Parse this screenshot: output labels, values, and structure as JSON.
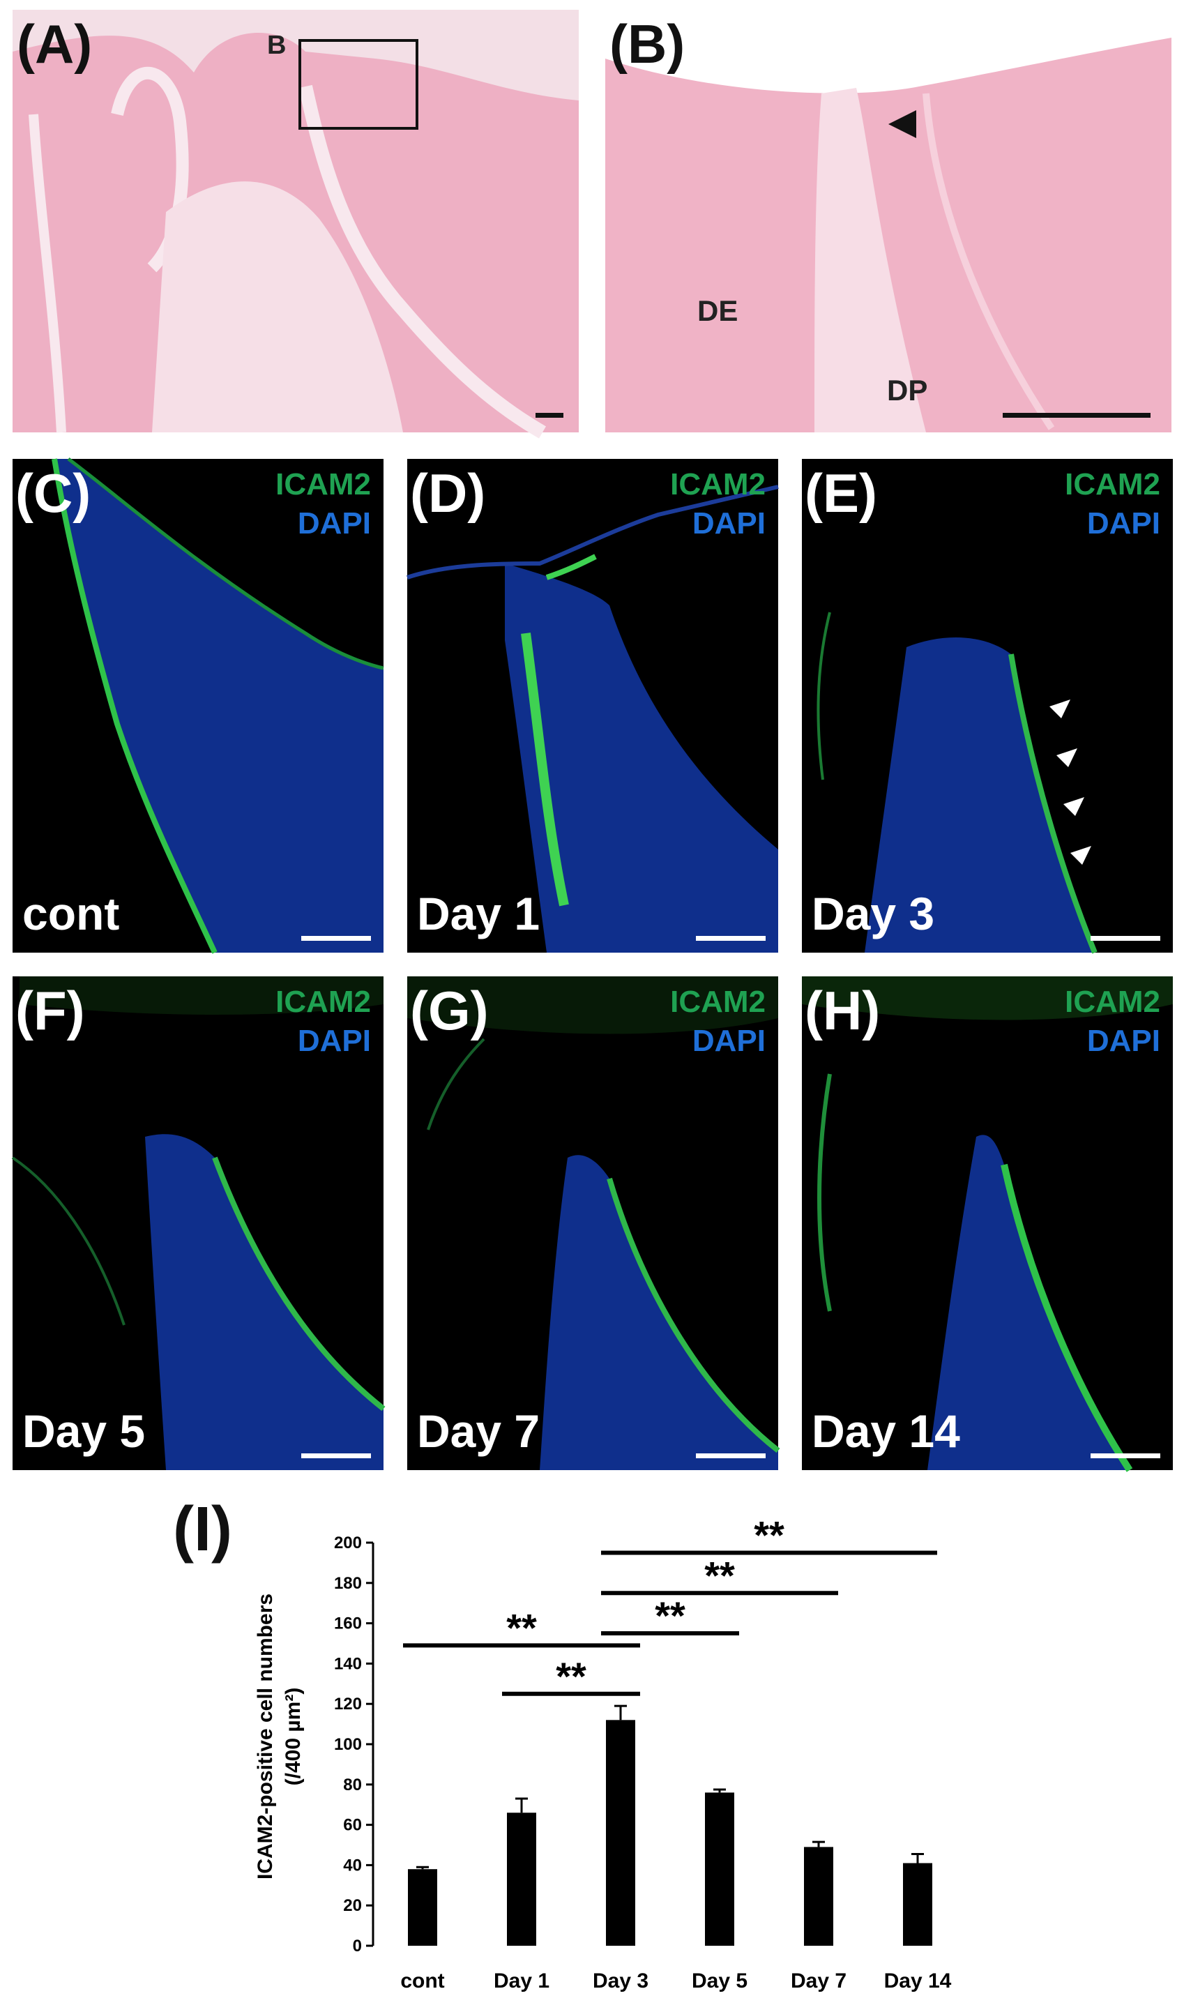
{
  "panels": {
    "A": {
      "label": "(A)",
      "inset_label": "B"
    },
    "B": {
      "label": "(B)",
      "region_labels": [
        "DE",
        "DP"
      ]
    },
    "fluorescence": [
      {
        "label": "(C)",
        "stain1": "ICAM2",
        "stain2": "DAPI",
        "day": "cont"
      },
      {
        "label": "(D)",
        "stain1": "ICAM2",
        "stain2": "DAPI",
        "day": "Day 1"
      },
      {
        "label": "(E)",
        "stain1": "ICAM2",
        "stain2": "DAPI",
        "day": "Day 3"
      },
      {
        "label": "(F)",
        "stain1": "ICAM2",
        "stain2": "DAPI",
        "day": "Day 5"
      },
      {
        "label": "(G)",
        "stain1": "ICAM2",
        "stain2": "DAPI",
        "day": "Day 7"
      },
      {
        "label": "(H)",
        "stain1": "ICAM2",
        "stain2": "DAPI",
        "day": "Day 14"
      }
    ]
  },
  "chart_panel_label": "(I)",
  "chart_data": {
    "type": "bar",
    "categories": [
      "cont",
      "Day 1",
      "Day 3",
      "Day 5",
      "Day 7",
      "Day 14"
    ],
    "values": [
      38,
      66,
      112,
      76,
      49,
      41
    ],
    "errors": [
      1,
      7,
      7,
      1.5,
      2.5,
      4.5
    ],
    "ylabel_line1": "ICAM2-positive cell numbers",
    "ylabel_line2": "(/400 µm²)",
    "ylim": [
      0,
      200
    ],
    "yticks": [
      0,
      20,
      40,
      60,
      80,
      100,
      120,
      140,
      160,
      180,
      200
    ],
    "bar_color": "#000000",
    "significance": [
      {
        "from": "Day 1",
        "to": "Day 3",
        "y": 125,
        "label": "**"
      },
      {
        "from": "cont",
        "to": "Day 3",
        "y": 149,
        "label": "**"
      },
      {
        "from": "Day 3",
        "to": "Day 5",
        "y": 155,
        "label": "**"
      },
      {
        "from": "Day 3",
        "to": "Day 7",
        "y": 175,
        "label": "**"
      },
      {
        "from": "Day 3",
        "to": "Day 14",
        "y": 195,
        "label": "**"
      }
    ]
  }
}
